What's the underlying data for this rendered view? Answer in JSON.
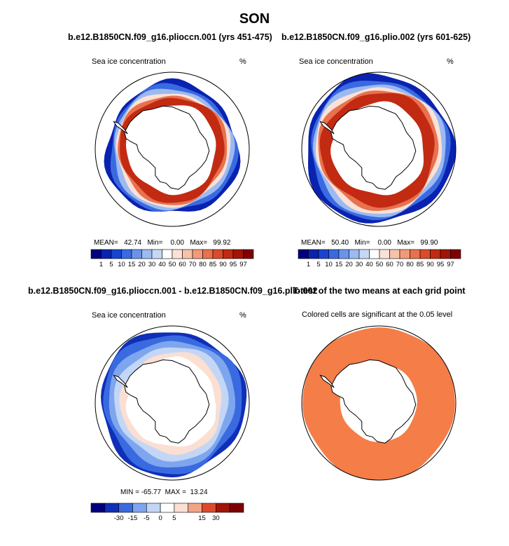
{
  "figure": {
    "title": "SON",
    "panels": [
      {
        "title": "b.e12.B1850CN.f09_g16.plioccn.001 (yrs 451-475)",
        "left_label": "Sea ice concentration",
        "right_label": "%",
        "stats": {
          "mean_label": "MEAN=",
          "mean": "42.74",
          "min_label": "Min=",
          "min": "0.00",
          "max_label": "Max=",
          "max": "99.92"
        },
        "colorbar_ticks": [
          "1",
          "5",
          "10",
          "15",
          "20",
          "30",
          "40",
          "50",
          "60",
          "70",
          "80",
          "85",
          "90",
          "95",
          "97"
        ]
      },
      {
        "title": "b.e12.B1850CN.f09_g16.plio.002 (yrs 601-625)",
        "left_label": "Sea ice concentration",
        "right_label": "%",
        "stats": {
          "mean_label": "MEAN=",
          "mean": "50.40",
          "min_label": "Min=",
          "min": "0.00",
          "max_label": "Max=",
          "max": "99.90"
        },
        "colorbar_ticks": [
          "1",
          "5",
          "10",
          "15",
          "20",
          "30",
          "40",
          "50",
          "60",
          "70",
          "80",
          "85",
          "90",
          "95",
          "97"
        ]
      },
      {
        "title": "b.e12.B1850CN.f09_g16.plioccn.001 - b.e12.B1850CN.f09_g16.plio.002",
        "left_label": "Sea ice concentration",
        "right_label": "%",
        "stats_text": "MIN = -65.77  MAX =  13.24",
        "colorbar_ticks": [
          "-30",
          "-15",
          "-5",
          "0",
          "5",
          "15",
          "30"
        ]
      },
      {
        "title": "T-test of the two means at each grid point",
        "subtitle": "Colored cells are significant at the 0.05 level"
      }
    ]
  },
  "colors": {
    "levels_abs": [
      "#00007f",
      "#0a22b0",
      "#1a44d0",
      "#3a6ae0",
      "#6a94ec",
      "#9cbaf2",
      "#c7d8f6",
      "#ffffff",
      "#fbe1d6",
      "#f7c2aa",
      "#f19a7a",
      "#e8714e",
      "#dc4a2b",
      "#c22a12",
      "#a11506",
      "#7f0000"
    ],
    "levels_diff": [
      "#00007f",
      "#0f2fb8",
      "#3a6ae0",
      "#7ea6ee",
      "#c4d6f5",
      "#ffffff",
      "#fadfd2",
      "#f2a487",
      "#dc4a2b",
      "#a11506",
      "#7f0000"
    ],
    "ttest_fill": "#f57d47",
    "land": "#ffffff",
    "coast": "#000000"
  }
}
